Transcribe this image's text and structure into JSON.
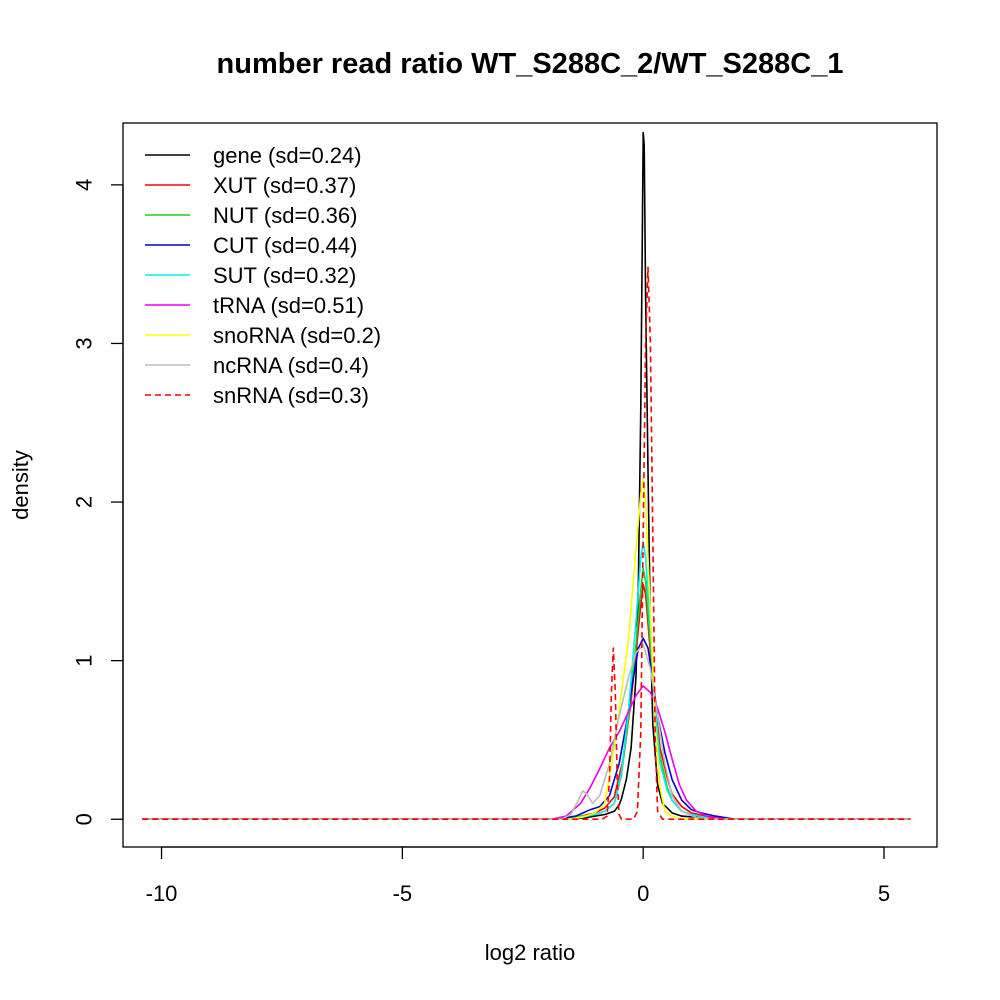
{
  "chart_data": {
    "type": "line",
    "title": "number read ratio WT_S288C_2/WT_S288C_1",
    "xlabel": "log2 ratio",
    "ylabel": "density",
    "xlim": [
      -10.8,
      6.1
    ],
    "ylim": [
      -0.175,
      4.39
    ],
    "xticks": [
      -10,
      -5,
      0,
      5
    ],
    "xtick_labels": [
      "-10",
      "-5",
      "0",
      "5"
    ],
    "yticks": [
      0,
      1,
      2,
      3,
      4
    ],
    "ytick_labels": [
      "0",
      "1",
      "2",
      "3",
      "4"
    ],
    "grid": false,
    "legend_position": "top-left",
    "x_range": [
      -10.4,
      5.55
    ],
    "series": [
      {
        "name": "gene (sd=0.24)",
        "color": "#000000",
        "dash": "solid",
        "points": [
          [
            -10.4,
            0
          ],
          [
            -1.5,
            0
          ],
          [
            -1.2,
            0.01
          ],
          [
            -1.0,
            0.02
          ],
          [
            -0.8,
            0.03
          ],
          [
            -0.6,
            0.05
          ],
          [
            -0.5,
            0.09
          ],
          [
            -0.45,
            0.13
          ],
          [
            -0.35,
            0.25
          ],
          [
            -0.25,
            0.45
          ],
          [
            -0.15,
            0.9
          ],
          [
            -0.1,
            1.5
          ],
          [
            -0.05,
            2.6
          ],
          [
            -0.02,
            3.6
          ],
          [
            0.0,
            4.33
          ],
          [
            0.02,
            4.25
          ],
          [
            0.05,
            3.3
          ],
          [
            0.1,
            2.2
          ],
          [
            0.15,
            1.2
          ],
          [
            0.2,
            0.6
          ],
          [
            0.3,
            0.22
          ],
          [
            0.4,
            0.1
          ],
          [
            0.5,
            0.07
          ],
          [
            0.6,
            0.04
          ],
          [
            0.8,
            0.02
          ],
          [
            1.2,
            0.01
          ],
          [
            1.6,
            0
          ],
          [
            5.55,
            0
          ]
        ]
      },
      {
        "name": "XUT (sd=0.37)",
        "color": "#ff0000",
        "dash": "solid",
        "points": [
          [
            -10.4,
            0
          ],
          [
            -1.6,
            0
          ],
          [
            -1.3,
            0.02
          ],
          [
            -1.0,
            0.04
          ],
          [
            -0.8,
            0.07
          ],
          [
            -0.6,
            0.14
          ],
          [
            -0.4,
            0.4
          ],
          [
            -0.25,
            0.75
          ],
          [
            -0.15,
            1.05
          ],
          [
            -0.05,
            1.35
          ],
          [
            0.0,
            1.48
          ],
          [
            0.05,
            1.42
          ],
          [
            0.15,
            1.05
          ],
          [
            0.25,
            0.72
          ],
          [
            0.35,
            0.45
          ],
          [
            0.5,
            0.26
          ],
          [
            0.6,
            0.16
          ],
          [
            0.8,
            0.08
          ],
          [
            1.0,
            0.04
          ],
          [
            1.3,
            0.02
          ],
          [
            1.7,
            0
          ],
          [
            5.55,
            0
          ]
        ]
      },
      {
        "name": "NUT (sd=0.36)",
        "color": "#22cc22",
        "dash": "solid",
        "points": [
          [
            -10.4,
            0
          ],
          [
            -1.6,
            0
          ],
          [
            -1.3,
            0.02
          ],
          [
            -1.0,
            0.03
          ],
          [
            -0.8,
            0.05
          ],
          [
            -0.6,
            0.1
          ],
          [
            -0.45,
            0.28
          ],
          [
            -0.3,
            0.65
          ],
          [
            -0.15,
            1.1
          ],
          [
            -0.05,
            1.45
          ],
          [
            0.0,
            1.58
          ],
          [
            0.05,
            1.5
          ],
          [
            0.15,
            1.1
          ],
          [
            0.25,
            0.7
          ],
          [
            0.35,
            0.4
          ],
          [
            0.5,
            0.2
          ],
          [
            0.6,
            0.12
          ],
          [
            0.8,
            0.05
          ],
          [
            1.0,
            0.03
          ],
          [
            1.3,
            0.01
          ],
          [
            1.7,
            0
          ],
          [
            5.55,
            0
          ]
        ]
      },
      {
        "name": "CUT (sd=0.44)",
        "color": "#0000cc",
        "dash": "solid",
        "points": [
          [
            -10.4,
            0
          ],
          [
            -1.8,
            0
          ],
          [
            -1.4,
            0.02
          ],
          [
            -1.1,
            0.06
          ],
          [
            -0.9,
            0.08
          ],
          [
            -0.7,
            0.15
          ],
          [
            -0.5,
            0.35
          ],
          [
            -0.35,
            0.6
          ],
          [
            -0.2,
            0.9
          ],
          [
            -0.1,
            1.08
          ],
          [
            0.0,
            1.14
          ],
          [
            0.1,
            1.08
          ],
          [
            0.2,
            0.88
          ],
          [
            0.3,
            0.65
          ],
          [
            0.45,
            0.42
          ],
          [
            0.6,
            0.25
          ],
          [
            0.8,
            0.12
          ],
          [
            1.0,
            0.06
          ],
          [
            1.2,
            0.04
          ],
          [
            1.5,
            0.02
          ],
          [
            1.9,
            0
          ],
          [
            5.55,
            0
          ]
        ]
      },
      {
        "name": "SUT (sd=0.32)",
        "color": "#00eeee",
        "dash": "solid",
        "points": [
          [
            -10.4,
            0
          ],
          [
            -1.6,
            0
          ],
          [
            -1.3,
            0.01
          ],
          [
            -1.0,
            0.03
          ],
          [
            -0.8,
            0.05
          ],
          [
            -0.6,
            0.1
          ],
          [
            -0.45,
            0.3
          ],
          [
            -0.3,
            0.7
          ],
          [
            -0.15,
            1.25
          ],
          [
            -0.05,
            1.65
          ],
          [
            0.0,
            1.75
          ],
          [
            0.05,
            1.65
          ],
          [
            0.15,
            1.2
          ],
          [
            0.25,
            0.7
          ],
          [
            0.35,
            0.35
          ],
          [
            0.5,
            0.18
          ],
          [
            0.6,
            0.12
          ],
          [
            0.8,
            0.05
          ],
          [
            1.0,
            0.03
          ],
          [
            1.3,
            0.01
          ],
          [
            1.7,
            0
          ],
          [
            5.55,
            0
          ]
        ]
      },
      {
        "name": "tRNA (sd=0.51)",
        "color": "#ee00ee",
        "dash": "solid",
        "points": [
          [
            -10.4,
            0
          ],
          [
            -1.9,
            0
          ],
          [
            -1.6,
            0.02
          ],
          [
            -1.3,
            0.1
          ],
          [
            -1.1,
            0.2
          ],
          [
            -0.9,
            0.32
          ],
          [
            -0.7,
            0.45
          ],
          [
            -0.5,
            0.55
          ],
          [
            -0.3,
            0.68
          ],
          [
            -0.15,
            0.78
          ],
          [
            0.0,
            0.84
          ],
          [
            0.15,
            0.8
          ],
          [
            0.3,
            0.7
          ],
          [
            0.45,
            0.55
          ],
          [
            0.6,
            0.38
          ],
          [
            0.75,
            0.22
          ],
          [
            0.9,
            0.12
          ],
          [
            1.1,
            0.05
          ],
          [
            1.4,
            0.01
          ],
          [
            1.8,
            0
          ],
          [
            5.55,
            0
          ]
        ]
      },
      {
        "name": "snoRNA (sd=0.2)",
        "color": "#ffff00",
        "dash": "solid",
        "points": [
          [
            -10.4,
            0
          ],
          [
            -1.5,
            0
          ],
          [
            -1.2,
            0.02
          ],
          [
            -1.0,
            0.04
          ],
          [
            -0.8,
            0.1
          ],
          [
            -0.6,
            0.45
          ],
          [
            -0.45,
            0.8
          ],
          [
            -0.3,
            1.15
          ],
          [
            -0.15,
            1.7
          ],
          [
            -0.05,
            2.05
          ],
          [
            0.0,
            2.15
          ],
          [
            0.05,
            2.0
          ],
          [
            0.15,
            1.3
          ],
          [
            0.25,
            0.6
          ],
          [
            0.35,
            0.2
          ],
          [
            0.45,
            0.05
          ],
          [
            0.6,
            0.02
          ],
          [
            0.8,
            0
          ],
          [
            5.55,
            0
          ]
        ]
      },
      {
        "name": "ncRNA (sd=0.4)",
        "color": "#bbbbbb",
        "dash": "solid",
        "points": [
          [
            -10.4,
            0
          ],
          [
            -1.7,
            0
          ],
          [
            -1.5,
            0.03
          ],
          [
            -1.35,
            0.12
          ],
          [
            -1.25,
            0.18
          ],
          [
            -1.15,
            0.15
          ],
          [
            -1.05,
            0.1
          ],
          [
            -0.9,
            0.15
          ],
          [
            -0.7,
            0.35
          ],
          [
            -0.5,
            0.65
          ],
          [
            -0.3,
            0.9
          ],
          [
            -0.15,
            1.05
          ],
          [
            0.0,
            1.1
          ],
          [
            0.15,
            0.95
          ],
          [
            0.3,
            0.65
          ],
          [
            0.45,
            0.35
          ],
          [
            0.6,
            0.15
          ],
          [
            0.8,
            0.05
          ],
          [
            1.1,
            0.01
          ],
          [
            1.4,
            0
          ],
          [
            5.55,
            0
          ]
        ]
      },
      {
        "name": "snRNA (sd=0.3)",
        "color": "#ff0000",
        "dash": "dashed",
        "points": [
          [
            -10.4,
            0
          ],
          [
            -0.85,
            0
          ],
          [
            -0.75,
            0.02
          ],
          [
            -0.7,
            0.25
          ],
          [
            -0.66,
            0.8
          ],
          [
            -0.62,
            1.08
          ],
          [
            -0.58,
            0.8
          ],
          [
            -0.54,
            0.25
          ],
          [
            -0.5,
            0.03
          ],
          [
            -0.45,
            0
          ],
          [
            -0.2,
            0
          ],
          [
            -0.12,
            0.05
          ],
          [
            -0.05,
            0.55
          ],
          [
            0.0,
            1.8
          ],
          [
            0.05,
            3.0
          ],
          [
            0.1,
            3.48
          ],
          [
            0.15,
            3.0
          ],
          [
            0.2,
            1.8
          ],
          [
            0.25,
            0.5
          ],
          [
            0.3,
            0.05
          ],
          [
            0.4,
            0
          ],
          [
            5.55,
            0
          ]
        ]
      }
    ]
  }
}
